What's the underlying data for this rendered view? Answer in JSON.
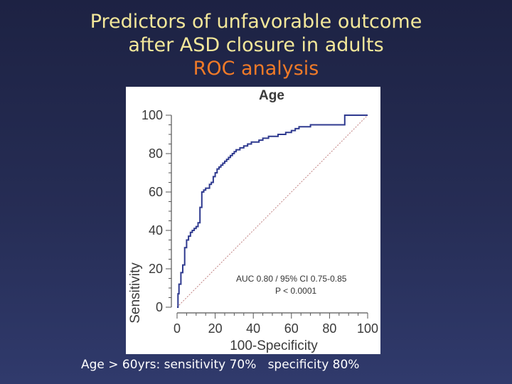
{
  "slide": {
    "title_line1": "Predictors of unfavorable outcome",
    "title_line2": "after ASD closure in adults",
    "subtitle": "ROC analysis",
    "footer_left": "Age > 60yrs: sensitivity 70%",
    "footer_right": "specificity 80%",
    "colors": {
      "title": "#f3e79a",
      "subtitle": "#f07a28",
      "footer": "#ffffff",
      "curve": "#2f3a8f",
      "diagonal": "#c08080"
    }
  },
  "chart_data": {
    "type": "line",
    "title": "Age",
    "xlabel": "100-Specificity",
    "ylabel": "Sensitivity",
    "xlim": [
      0,
      100
    ],
    "ylim": [
      0,
      100
    ],
    "xticks": [
      "0",
      "20",
      "40",
      "60",
      "80",
      "100"
    ],
    "yticks": [
      "0",
      "20",
      "40",
      "60",
      "80",
      "100"
    ],
    "grid": false,
    "annotations": [
      "AUC 0.80 / 95% CI 0.75-0.85",
      "P < 0.0001"
    ],
    "series": [
      {
        "x": [
          0,
          0.5,
          0.5,
          1,
          1,
          2,
          2,
          3,
          3,
          4,
          4,
          5,
          5,
          6,
          6,
          7,
          7,
          8,
          8,
          9,
          9,
          10,
          10,
          11,
          11,
          12,
          12,
          13,
          13,
          14,
          14,
          15,
          15,
          16,
          16,
          17,
          17,
          18,
          18,
          19,
          19,
          20,
          20,
          21,
          21,
          22,
          22,
          23,
          23,
          24,
          24,
          25,
          25,
          26,
          26,
          27,
          27,
          28,
          28,
          29,
          29,
          30,
          30,
          31,
          31,
          32,
          32,
          33,
          33,
          35,
          35,
          37,
          37,
          39,
          39,
          41,
          41,
          43,
          43,
          45,
          45,
          48,
          48,
          51,
          51,
          53,
          53,
          55,
          55,
          57,
          57,
          60,
          60,
          62,
          62,
          64,
          64,
          66,
          66,
          70,
          70,
          88,
          88,
          100
        ],
        "y": [
          0,
          0,
          7,
          7,
          12,
          12,
          18,
          18,
          22,
          22,
          31,
          31,
          35,
          35,
          37,
          37,
          39,
          39,
          40,
          40,
          41,
          41,
          42,
          42,
          44,
          44,
          52,
          52,
          60,
          60,
          61,
          61,
          62,
          62,
          62,
          62,
          64,
          64,
          65,
          65,
          68,
          68,
          70,
          70,
          72,
          72,
          73,
          73,
          74,
          74,
          75,
          75,
          76,
          76,
          77,
          77,
          78,
          78,
          79,
          79,
          80,
          80,
          81,
          81,
          82,
          82,
          82,
          82,
          83,
          83,
          84,
          84,
          85,
          85,
          86,
          86,
          86,
          86,
          87,
          87,
          88,
          88,
          89,
          89,
          89,
          89,
          90,
          90,
          90,
          90,
          91,
          91,
          92,
          92,
          93,
          93,
          94,
          94,
          94,
          94,
          95,
          95,
          100,
          100
        ]
      },
      {
        "x": [
          0,
          100
        ],
        "y": [
          0,
          100
        ]
      }
    ]
  }
}
